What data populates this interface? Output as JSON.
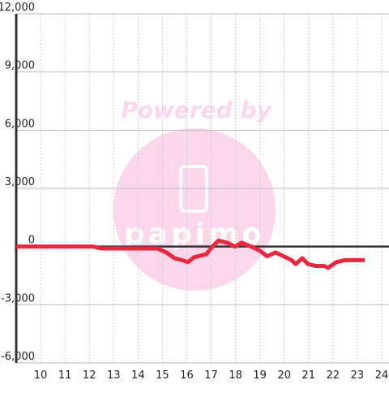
{
  "chart_data": {
    "type": "line",
    "watermark": {
      "text": "Powered by",
      "logo": "papimo"
    },
    "x": [
      9,
      12.16,
      12.5,
      14.8,
      15.15,
      15.5,
      15.8,
      16.05,
      16.3,
      16.8,
      17.05,
      17.3,
      17.65,
      17.98,
      18.25,
      18.64,
      18.98,
      19.3,
      19.64,
      19.97,
      20.3,
      20.47,
      20.74,
      20.97,
      21.3,
      21.64,
      21.8,
      22.14,
      22.47,
      23.3
    ],
    "series": [
      {
        "color": "#e8283f",
        "values": [
          0,
          0,
          -100,
          -100,
          -300,
          -600,
          -700,
          -800,
          -550,
          -400,
          0,
          300,
          200,
          0,
          200,
          0,
          -200,
          -500,
          -300,
          -500,
          -700,
          -900,
          -600,
          -900,
          -1000,
          -1000,
          -1100,
          -800,
          -700,
          -700
        ]
      }
    ],
    "xlim": [
      9,
      24.3
    ],
    "xticks": [
      10,
      11,
      12,
      13,
      14,
      15,
      16,
      17,
      18,
      19,
      20,
      21,
      22,
      23,
      24
    ],
    "ylim": [
      -6000,
      12000
    ],
    "yticks": [
      {
        "value": -6000,
        "label": "-6,000"
      },
      {
        "value": -3000,
        "label": "-3,000"
      },
      0,
      {
        "value": 3000,
        "label": "3,000"
      },
      {
        "value": 6000,
        "label": "6,000"
      },
      {
        "value": 9000,
        "label": "9,000"
      },
      {
        "value": 12000,
        "label": "12,000"
      }
    ],
    "grid": true
  }
}
